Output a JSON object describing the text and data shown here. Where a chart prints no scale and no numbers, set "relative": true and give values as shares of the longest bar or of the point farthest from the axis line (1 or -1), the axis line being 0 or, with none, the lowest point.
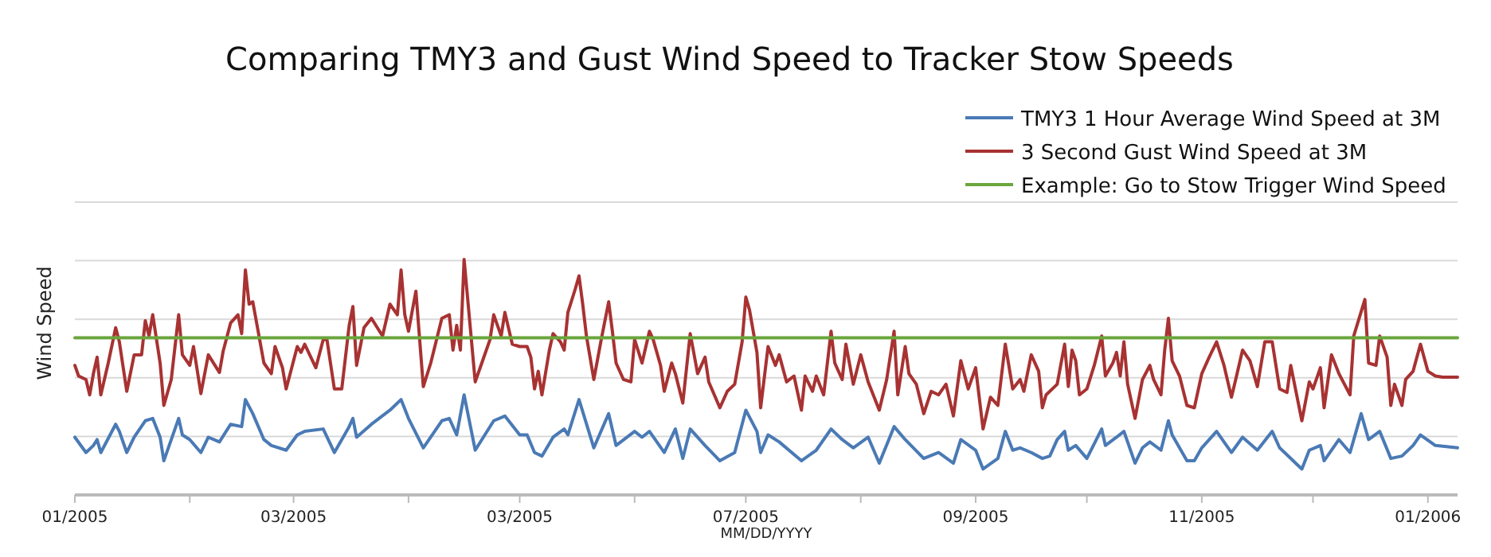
{
  "chart_data": {
    "type": "line",
    "title": "Comparing TMY3 and Gust Wind Speed to Tracker Stow Speeds",
    "xlabel": "MM/DD/YYYY",
    "ylabel": "Wind Speed",
    "relative": true,
    "grid": "y",
    "legend": "top right",
    "xlim": [
      "2005-01-01",
      "2006-01-09"
    ],
    "xticks": [
      {
        "value": "2005-01-01",
        "label": "01/2005"
      },
      {
        "value": "2005-02-01",
        "label": null
      },
      {
        "value": "2005-03-01",
        "label": "03/2005"
      },
      {
        "value": "2005-04-01",
        "label": null
      },
      {
        "value": "2005-05-01",
        "label": "03/2005"
      },
      {
        "value": "2005-06-01",
        "label": null
      },
      {
        "value": "2005-07-01",
        "label": "07/2005"
      },
      {
        "value": "2005-08-01",
        "label": null
      },
      {
        "value": "2005-09-01",
        "label": "09/2005"
      },
      {
        "value": "2005-10-01",
        "label": null
      },
      {
        "value": "2005-11-01",
        "label": "11/2005"
      },
      {
        "value": "2005-12-01",
        "label": null
      },
      {
        "value": "2006-01-01",
        "label": "01/2006"
      }
    ],
    "series": [
      {
        "name": "TMY3 1 Hour Average Wind Speed at 3M",
        "color": "#4a7ab5",
        "x": [
          "2005-01-01",
          "2005-01-04",
          "2005-01-06",
          "2005-01-07",
          "2005-01-08",
          "2005-01-12",
          "2005-01-13",
          "2005-01-15",
          "2005-01-17",
          "2005-01-20",
          "2005-01-22",
          "2005-01-24",
          "2005-01-25",
          "2005-01-29",
          "2005-01-30",
          "2005-02-01",
          "2005-02-04",
          "2005-02-06",
          "2005-02-09",
          "2005-02-12",
          "2005-02-15",
          "2005-02-16",
          "2005-02-18",
          "2005-02-21",
          "2005-02-23",
          "2005-02-27",
          "2005-03-02",
          "2005-03-04",
          "2005-03-09",
          "2005-03-12",
          "2005-03-16",
          "2005-03-17",
          "2005-03-18",
          "2005-03-22",
          "2005-03-27",
          "2005-03-30",
          "2005-04-01",
          "2005-04-05",
          "2005-04-10",
          "2005-04-12",
          "2005-04-14",
          "2005-04-16",
          "2005-04-19",
          "2005-04-24",
          "2005-04-27",
          "2005-05-01",
          "2005-05-03",
          "2005-05-05",
          "2005-05-07",
          "2005-05-10",
          "2005-05-13",
          "2005-05-14",
          "2005-05-17",
          "2005-05-21",
          "2005-05-25",
          "2005-05-27",
          "2005-06-01",
          "2005-06-03",
          "2005-06-05",
          "2005-06-09",
          "2005-06-12",
          "2005-06-14",
          "2005-06-16",
          "2005-06-20",
          "2005-06-24",
          "2005-06-28",
          "2005-07-01",
          "2005-07-04",
          "2005-07-05",
          "2005-07-07",
          "2005-07-10",
          "2005-07-16",
          "2005-07-20",
          "2005-07-24",
          "2005-07-27",
          "2005-07-30",
          "2005-08-03",
          "2005-08-06",
          "2005-08-10",
          "2005-08-13",
          "2005-08-18",
          "2005-08-22",
          "2005-08-26",
          "2005-08-28",
          "2005-09-01",
          "2005-09-03",
          "2005-09-07",
          "2005-09-09",
          "2005-09-11",
          "2005-09-13",
          "2005-09-16",
          "2005-09-19",
          "2005-09-21",
          "2005-09-23",
          "2005-09-25",
          "2005-09-26",
          "2005-09-28",
          "2005-10-01",
          "2005-10-05",
          "2005-10-06",
          "2005-10-09",
          "2005-10-11",
          "2005-10-14",
          "2005-10-16",
          "2005-10-18",
          "2005-10-21",
          "2005-10-23",
          "2005-10-24",
          "2005-10-28",
          "2005-10-30",
          "2005-11-01",
          "2005-11-05",
          "2005-11-09",
          "2005-11-12",
          "2005-11-16",
          "2005-11-20",
          "2005-11-22",
          "2005-11-28",
          "2005-11-30",
          "2005-12-03",
          "2005-12-04",
          "2005-12-08",
          "2005-12-11",
          "2005-12-14",
          "2005-12-16",
          "2005-12-19",
          "2005-12-22",
          "2005-12-25",
          "2005-12-28",
          "2005-12-30",
          "2006-01-03",
          "2006-01-09"
        ],
        "values": [
          0.245,
          0.18,
          0.21,
          0.235,
          0.18,
          0.3,
          0.27,
          0.18,
          0.245,
          0.315,
          0.325,
          0.245,
          0.145,
          0.325,
          0.255,
          0.235,
          0.18,
          0.245,
          0.225,
          0.3,
          0.29,
          0.405,
          0.345,
          0.235,
          0.21,
          0.19,
          0.255,
          0.27,
          0.28,
          0.18,
          0.29,
          0.325,
          0.245,
          0.3,
          0.36,
          0.405,
          0.325,
          0.2,
          0.315,
          0.325,
          0.255,
          0.425,
          0.19,
          0.315,
          0.335,
          0.255,
          0.255,
          0.18,
          0.165,
          0.245,
          0.28,
          0.255,
          0.405,
          0.2,
          0.345,
          0.21,
          0.27,
          0.245,
          0.27,
          0.18,
          0.28,
          0.155,
          0.28,
          0.21,
          0.145,
          0.18,
          0.36,
          0.27,
          0.18,
          0.255,
          0.225,
          0.145,
          0.19,
          0.28,
          0.235,
          0.2,
          0.245,
          0.135,
          0.29,
          0.235,
          0.155,
          0.18,
          0.135,
          0.235,
          0.19,
          0.11,
          0.155,
          0.27,
          0.19,
          0.2,
          0.18,
          0.155,
          0.165,
          0.235,
          0.27,
          0.19,
          0.21,
          0.155,
          0.28,
          0.21,
          0.245,
          0.27,
          0.135,
          0.2,
          0.225,
          0.19,
          0.315,
          0.255,
          0.145,
          0.145,
          0.2,
          0.27,
          0.18,
          0.245,
          0.19,
          0.27,
          0.2,
          0.11,
          0.19,
          0.21,
          0.145,
          0.235,
          0.18,
          0.345,
          0.235,
          0.27,
          0.155,
          0.165,
          0.21,
          0.255,
          0.21,
          0.2
        ]
      },
      {
        "name": "3 Second Gust Wind Speed at 3M",
        "color": "#a83232",
        "x": [
          "2005-01-01",
          "2005-01-02",
          "2005-01-04",
          "2005-01-05",
          "2005-01-06",
          "2005-01-07",
          "2005-01-08",
          "2005-01-10",
          "2005-01-12",
          "2005-01-13",
          "2005-01-15",
          "2005-01-17",
          "2005-01-19",
          "2005-01-20",
          "2005-01-21",
          "2005-01-22",
          "2005-01-24",
          "2005-01-25",
          "2005-01-27",
          "2005-01-29",
          "2005-01-30",
          "2005-02-01",
          "2005-02-02",
          "2005-02-04",
          "2005-02-06",
          "2005-02-09",
          "2005-02-10",
          "2005-02-12",
          "2005-02-14",
          "2005-02-15",
          "2005-02-16",
          "2005-02-17",
          "2005-02-18",
          "2005-02-21",
          "2005-02-23",
          "2005-02-24",
          "2005-02-26",
          "2005-02-27",
          "2005-03-02",
          "2005-03-03",
          "2005-03-04",
          "2005-03-07",
          "2005-03-09",
          "2005-03-10",
          "2005-03-12",
          "2005-03-14",
          "2005-03-16",
          "2005-03-17",
          "2005-03-18",
          "2005-03-20",
          "2005-03-22",
          "2005-03-25",
          "2005-03-27",
          "2005-03-29",
          "2005-03-30",
          "2005-03-31",
          "2005-04-01",
          "2005-04-03",
          "2005-04-05",
          "2005-04-07",
          "2005-04-10",
          "2005-04-12",
          "2005-04-13",
          "2005-04-14",
          "2005-04-15",
          "2005-04-16",
          "2005-04-19",
          "2005-04-21",
          "2005-04-23",
          "2005-04-24",
          "2005-04-26",
          "2005-04-27",
          "2005-04-29",
          "2005-05-01",
          "2005-05-03",
          "2005-05-04",
          "2005-05-05",
          "2005-05-06",
          "2005-05-07",
          "2005-05-09",
          "2005-05-10",
          "2005-05-12",
          "2005-05-13",
          "2005-05-14",
          "2005-05-16",
          "2005-05-17",
          "2005-05-18",
          "2005-05-19",
          "2005-05-21",
          "2005-05-23",
          "2005-05-25",
          "2005-05-26",
          "2005-05-27",
          "2005-05-29",
          "2005-05-31",
          "2005-06-01",
          "2005-06-03",
          "2005-06-05",
          "2005-06-06",
          "2005-06-08",
          "2005-06-09",
          "2005-06-11",
          "2005-06-12",
          "2005-06-14",
          "2005-06-16",
          "2005-06-18",
          "2005-06-20",
          "2005-06-21",
          "2005-06-24",
          "2005-06-26",
          "2005-06-28",
          "2005-06-30",
          "2005-07-01",
          "2005-07-02",
          "2005-07-04",
          "2005-07-05",
          "2005-07-07",
          "2005-07-09",
          "2005-07-10",
          "2005-07-12",
          "2005-07-14",
          "2005-07-16",
          "2005-07-17",
          "2005-07-19",
          "2005-07-20",
          "2005-07-22",
          "2005-07-24",
          "2005-07-25",
          "2005-07-27",
          "2005-07-28",
          "2005-07-30",
          "2005-08-01",
          "2005-08-03",
          "2005-08-06",
          "2005-08-08",
          "2005-08-10",
          "2005-08-11",
          "2005-08-13",
          "2005-08-14",
          "2005-08-16",
          "2005-08-18",
          "2005-08-20",
          "2005-08-22",
          "2005-08-24",
          "2005-08-26",
          "2005-08-28",
          "2005-08-30",
          "2005-09-01",
          "2005-09-03",
          "2005-09-05",
          "2005-09-07",
          "2005-09-09",
          "2005-09-11",
          "2005-09-13",
          "2005-09-14",
          "2005-09-16",
          "2005-09-18",
          "2005-09-19",
          "2005-09-20",
          "2005-09-23",
          "2005-09-25",
          "2005-09-26",
          "2005-09-27",
          "2005-09-28",
          "2005-09-29",
          "2005-10-01",
          "2005-10-03",
          "2005-10-05",
          "2005-10-06",
          "2005-10-08",
          "2005-10-09",
          "2005-10-10",
          "2005-10-11",
          "2005-10-12",
          "2005-10-14",
          "2005-10-16",
          "2005-10-18",
          "2005-10-19",
          "2005-10-21",
          "2005-10-22",
          "2005-10-23",
          "2005-10-24",
          "2005-10-26",
          "2005-10-28",
          "2005-10-30",
          "2005-11-01",
          "2005-11-03",
          "2005-11-05",
          "2005-11-07",
          "2005-11-09",
          "2005-11-10",
          "2005-11-12",
          "2005-11-14",
          "2005-11-16",
          "2005-11-18",
          "2005-11-20",
          "2005-11-22",
          "2005-11-24",
          "2005-11-25",
          "2005-11-28",
          "2005-11-30",
          "2005-12-01",
          "2005-12-03",
          "2005-12-04",
          "2005-12-06",
          "2005-12-08",
          "2005-12-11",
          "2005-12-12",
          "2005-12-15",
          "2005-12-16",
          "2005-12-18",
          "2005-12-19",
          "2005-12-21",
          "2005-12-22",
          "2005-12-23",
          "2005-12-25",
          "2005-12-26",
          "2005-12-28",
          "2005-12-30",
          "2006-01-01",
          "2006-01-03",
          "2006-01-05",
          "2006-01-09"
        ],
        "values": [
          0.55,
          0.505,
          0.49,
          0.425,
          0.515,
          0.585,
          0.425,
          0.56,
          0.71,
          0.65,
          0.44,
          0.595,
          0.595,
          0.74,
          0.675,
          0.765,
          0.56,
          0.38,
          0.49,
          0.765,
          0.595,
          0.55,
          0.63,
          0.43,
          0.595,
          0.52,
          0.61,
          0.73,
          0.765,
          0.685,
          0.955,
          0.81,
          0.82,
          0.56,
          0.515,
          0.63,
          0.54,
          0.45,
          0.63,
          0.605,
          0.64,
          0.54,
          0.66,
          0.66,
          0.45,
          0.45,
          0.72,
          0.8,
          0.55,
          0.71,
          0.75,
          0.675,
          0.81,
          0.765,
          0.955,
          0.765,
          0.695,
          0.865,
          0.46,
          0.56,
          0.75,
          0.765,
          0.615,
          0.72,
          0.615,
          1.0,
          0.48,
          0.57,
          0.66,
          0.765,
          0.675,
          0.775,
          0.64,
          0.63,
          0.63,
          0.585,
          0.45,
          0.525,
          0.425,
          0.615,
          0.685,
          0.65,
          0.615,
          0.775,
          0.875,
          0.93,
          0.81,
          0.675,
          0.49,
          0.66,
          0.82,
          0.695,
          0.56,
          0.49,
          0.48,
          0.66,
          0.56,
          0.695,
          0.66,
          0.55,
          0.44,
          0.56,
          0.515,
          0.39,
          0.685,
          0.515,
          0.585,
          0.48,
          0.37,
          0.44,
          0.47,
          0.65,
          0.84,
          0.785,
          0.605,
          0.37,
          0.63,
          0.55,
          0.595,
          0.48,
          0.505,
          0.36,
          0.505,
          0.44,
          0.505,
          0.425,
          0.695,
          0.56,
          0.49,
          0.64,
          0.47,
          0.595,
          0.48,
          0.36,
          0.49,
          0.695,
          0.425,
          0.63,
          0.515,
          0.47,
          0.345,
          0.44,
          0.425,
          0.47,
          0.335,
          0.57,
          0.45,
          0.54,
          0.28,
          0.415,
          0.38,
          0.64,
          0.45,
          0.49,
          0.44,
          0.595,
          0.525,
          0.37,
          0.425,
          0.47,
          0.64,
          0.46,
          0.615,
          0.57,
          0.425,
          0.45,
          0.55,
          0.675,
          0.505,
          0.56,
          0.605,
          0.505,
          0.65,
          0.47,
          0.325,
          0.49,
          0.55,
          0.49,
          0.425,
          0.615,
          0.75,
          0.57,
          0.505,
          0.38,
          0.37,
          0.515,
          0.585,
          0.65,
          0.55,
          0.415,
          0.48,
          0.615,
          0.57,
          0.46,
          0.65,
          0.65,
          0.45,
          0.435,
          0.55,
          0.315,
          0.48,
          0.45,
          0.54,
          0.37,
          0.595,
          0.515,
          0.425,
          0.675,
          0.83,
          0.56,
          0.55,
          0.675,
          0.585,
          0.38,
          0.47,
          0.38,
          0.49,
          0.525,
          0.64,
          0.525,
          0.505,
          0.5,
          0.5
        ]
      },
      {
        "name": "Example: Go to Stow Trigger Wind Speed",
        "color": "#6aa63c",
        "x": [
          "2005-01-01",
          "2006-01-09"
        ],
        "values": [
          0.667,
          0.667
        ]
      }
    ]
  }
}
